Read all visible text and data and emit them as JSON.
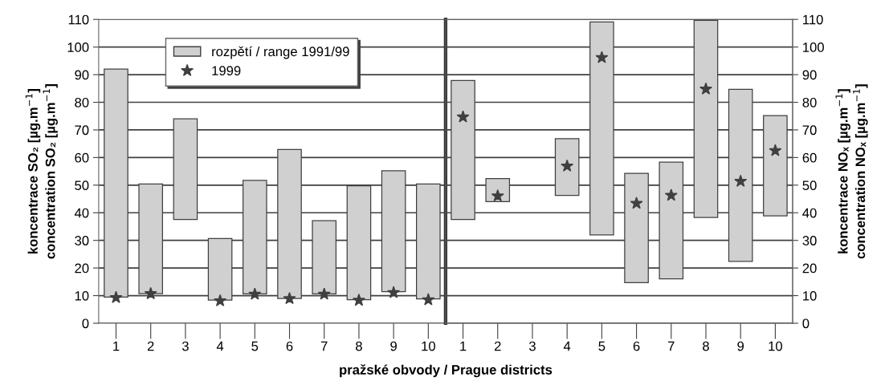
{
  "chart_data": [
    {
      "type": "bar",
      "categories": [
        "1",
        "2",
        "3",
        "4",
        "5",
        "6",
        "7",
        "8",
        "9",
        "10"
      ],
      "xlabel": "pražské obvody / Prague districts",
      "ylabel": "koncentrace SO₂ [µg.m$^{−1}$]\nconcentration SO₂ [µg.m$^{−1}$]",
      "ylim": [
        0,
        110
      ],
      "yticks": [
        0,
        10,
        20,
        30,
        40,
        50,
        60,
        70,
        80,
        90,
        100,
        110
      ],
      "grid": "y",
      "legend": "top",
      "series": [
        {
          "name": "rozpětí / range 1991/99",
          "color": "#d0d0d0",
          "base": [
            9.5,
            10.7,
            37.6,
            8.4,
            10.6,
            9.0,
            10.6,
            8.5,
            11.4,
            8.8
          ],
          "values": [
            82.5,
            39.7,
            36.4,
            22.3,
            41.1,
            53.9,
            26.5,
            41.3,
            43.8,
            41.6
          ]
        },
        {
          "name": "1999",
          "type": "scatter",
          "marker": "star",
          "color": "#404040",
          "values": [
            9.3,
            10.7,
            null,
            8.1,
            10.5,
            8.9,
            10.5,
            8.3,
            11.1,
            8.5
          ]
        }
      ]
    },
    {
      "type": "bar",
      "categories": [
        "1",
        "2",
        "3",
        "4",
        "5",
        "6",
        "7",
        "8",
        "9",
        "10"
      ],
      "y2label": "koncentrace NOₓ [µg.m$^{−1}$]\nconcentration NOₓ [µg.m$^{−1}$]",
      "y2lim": [
        0,
        110
      ],
      "y2ticks": [
        0,
        10,
        20,
        30,
        40,
        50,
        60,
        70,
        80,
        90,
        100,
        110
      ],
      "grid": "y",
      "series": [
        {
          "axis": "y2",
          "color": "#d0d0d0",
          "base": [
            37.6,
            44.0,
            null,
            46.3,
            32.0,
            14.7,
            16.1,
            38.3,
            22.4,
            38.9
          ],
          "values": [
            50.3,
            8.4,
            null,
            20.5,
            77.1,
            39.6,
            42.2,
            71.4,
            62.3,
            36.3
          ]
        },
        {
          "type": "scatter",
          "axis": "y2",
          "marker": "star",
          "color": "#404040",
          "values": [
            74.7,
            46.1,
            null,
            56.9,
            96.2,
            43.4,
            46.3,
            84.8,
            51.4,
            62.5
          ]
        }
      ]
    }
  ]
}
